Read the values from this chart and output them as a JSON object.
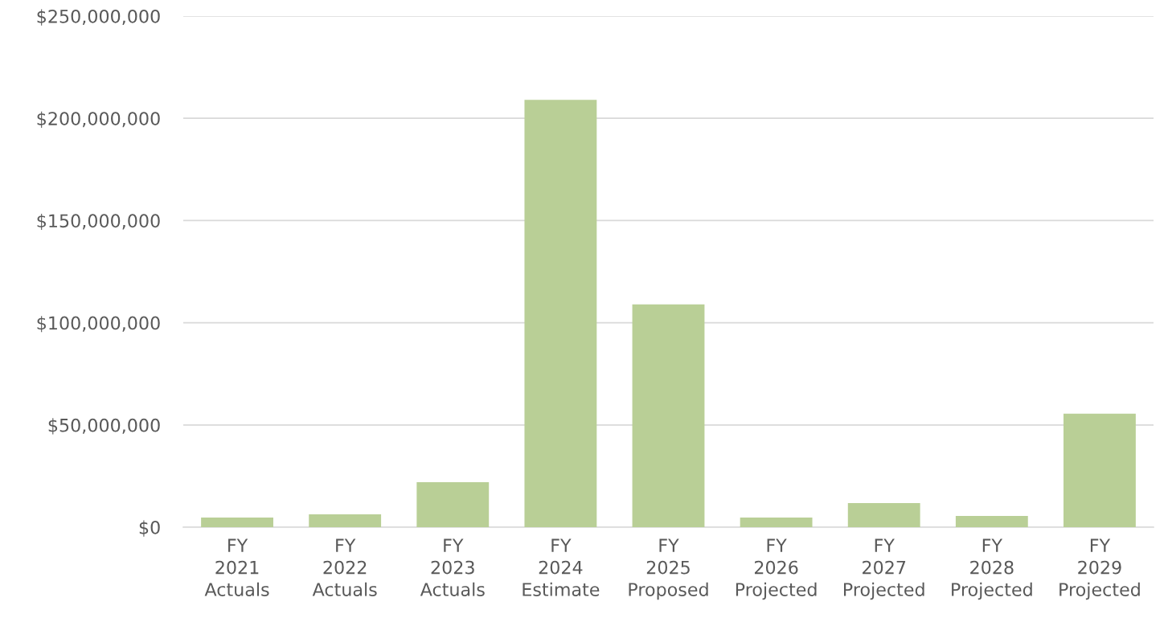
{
  "chart_data": {
    "type": "bar",
    "categories": [
      "FY\n2021\nActuals",
      "FY\n2022\nActuals",
      "FY\n2023\nActuals",
      "FY\n2024\nEstimate",
      "FY\n2025\nProposed",
      "FY\n2026\nProjected",
      "FY\n2027\nProjected",
      "FY\n2028\nProjected",
      "FY\n2029\nProjected"
    ],
    "values": [
      4700000,
      6300000,
      22000000,
      209000000,
      109000000,
      4700000,
      11800000,
      5500000,
      55500000
    ],
    "color": "#b9cf96",
    "ylim": [
      0,
      250000000
    ],
    "yticks": [
      {
        "value": 0,
        "label": "$0"
      },
      {
        "value": 50000000,
        "label": "$50,000,000"
      },
      {
        "value": 100000000,
        "label": "$100,000,000"
      },
      {
        "value": 150000000,
        "label": "$150,000,000"
      },
      {
        "value": 200000000,
        "label": "$200,000,000"
      },
      {
        "value": 250000000,
        "label": "$250,000,000"
      }
    ],
    "grid": "y"
  }
}
